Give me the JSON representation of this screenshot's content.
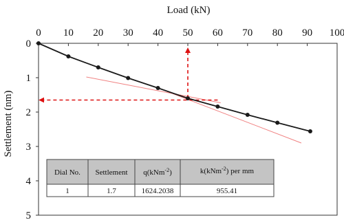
{
  "chart_data": {
    "type": "line",
    "xlabel": "Load (kN)",
    "ylabel": "Settlement (nm)",
    "x_axis_position": "top",
    "y_axis_inverted": true,
    "xlim": [
      0,
      100
    ],
    "ylim": [
      0,
      5
    ],
    "xticks": [
      0,
      10,
      20,
      30,
      40,
      50,
      60,
      70,
      80,
      90,
      100
    ],
    "yticks": [
      0,
      1,
      2,
      3,
      4,
      5
    ],
    "grid": false,
    "series": [
      {
        "color": "#1a1a1a",
        "x": [
          0,
          10,
          20,
          30,
          40,
          50,
          60,
          70,
          80,
          91
        ],
        "y": [
          0,
          0.38,
          0.7,
          1.01,
          1.3,
          1.6,
          1.84,
          2.08,
          2.31,
          2.56
        ]
      }
    ],
    "tangent_lines": [
      {
        "color": "#f08080",
        "x": [
          16,
          61
        ],
        "y": [
          0.98,
          1.73
        ]
      },
      {
        "color": "#f08080",
        "x": [
          40,
          88
        ],
        "y": [
          1.3,
          2.9
        ]
      }
    ],
    "guides": {
      "color": "#dd1111",
      "vertical": {
        "x": 50,
        "y_from": 1.6,
        "y_to": 0.16
      },
      "horizontal": {
        "y": 1.65,
        "x_from": 60,
        "x_to": 0.5
      }
    },
    "table": {
      "headers": [
        "Dial No.",
        "Settlement",
        "q(kNm-2)",
        "k(kNm-2) per mm"
      ],
      "rows": [
        [
          "1",
          "1.7",
          "1624.2038",
          "955.41"
        ]
      ]
    }
  }
}
